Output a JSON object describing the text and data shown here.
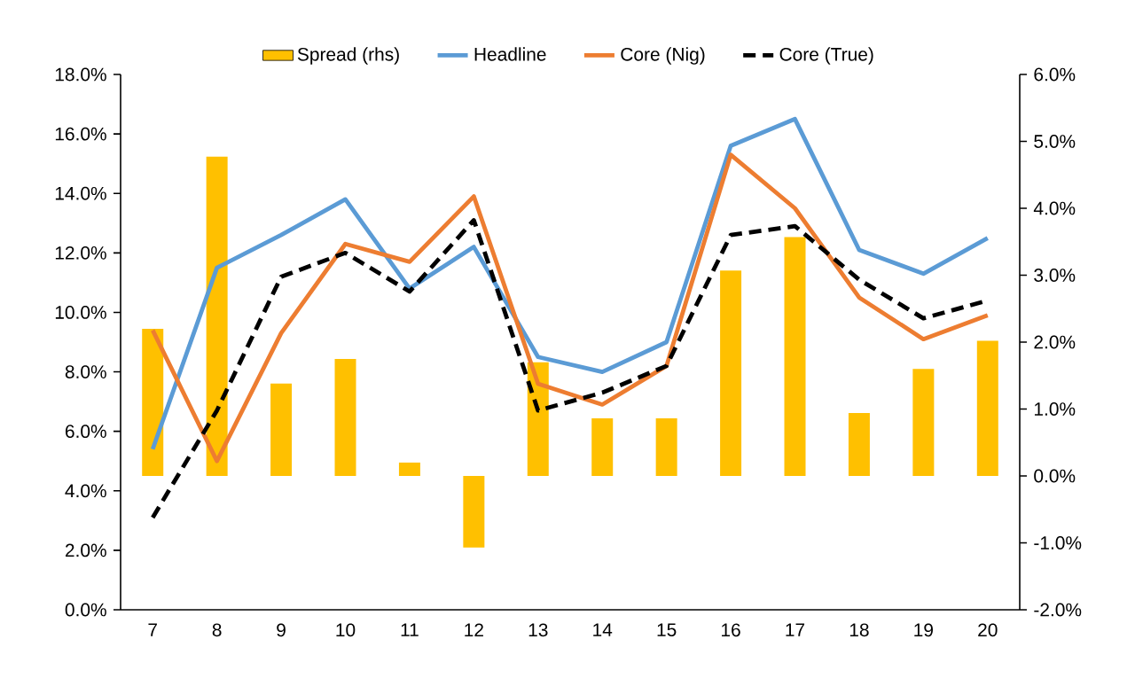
{
  "chart_data": {
    "type": "line",
    "categories": [
      "7",
      "8",
      "9",
      "10",
      "11",
      "12",
      "13",
      "14",
      "15",
      "16",
      "17",
      "18",
      "19",
      "20"
    ],
    "series": [
      {
        "name": "Spread (rhs)",
        "type": "bar",
        "axis": "y2",
        "color": "#ffc000",
        "values": [
          2.2,
          4.77,
          1.38,
          1.75,
          0.2,
          -1.07,
          1.7,
          0.86,
          0.86,
          3.07,
          3.57,
          0.94,
          1.6,
          2.02
        ]
      },
      {
        "name": "Headline",
        "color": "#5b9bd5",
        "line_style": "solid",
        "values": [
          5.4,
          11.5,
          12.6,
          13.8,
          10.8,
          12.2,
          8.5,
          8.0,
          9.0,
          15.6,
          16.5,
          12.1,
          11.3,
          12.5
        ]
      },
      {
        "name": "Core (Nig)",
        "color": "#ed7d31",
        "line_style": "solid",
        "values": [
          9.4,
          5.0,
          9.3,
          12.3,
          11.7,
          13.9,
          7.6,
          6.9,
          8.2,
          15.3,
          13.5,
          10.5,
          9.1,
          9.9
        ]
      },
      {
        "name": "Core (True)",
        "color": "#000000",
        "line_style": "dashed",
        "values": [
          3.1,
          6.7,
          11.2,
          12.0,
          10.7,
          13.1,
          6.7,
          7.3,
          8.2,
          12.6,
          12.9,
          11.1,
          9.8,
          10.4
        ]
      }
    ],
    "ylim": [
      0,
      18
    ],
    "yticks": [
      {
        "value": 0,
        "label": "0.0%"
      },
      {
        "value": 2,
        "label": "2.0%"
      },
      {
        "value": 4,
        "label": "4.0%"
      },
      {
        "value": 6,
        "label": "6.0%"
      },
      {
        "value": 8,
        "label": "8.0%"
      },
      {
        "value": 10,
        "label": "10.0%"
      },
      {
        "value": 12,
        "label": "12.0%"
      },
      {
        "value": 14,
        "label": "14.0%"
      },
      {
        "value": 16,
        "label": "16.0%"
      },
      {
        "value": 18,
        "label": "18.0%"
      }
    ],
    "y2lim": [
      -2,
      6
    ],
    "y2ticks": [
      {
        "value": -2,
        "label": "-2.0%"
      },
      {
        "value": -1,
        "label": "-1.0%"
      },
      {
        "value": 0,
        "label": "0.0%"
      },
      {
        "value": 1,
        "label": "1.0%"
      },
      {
        "value": 2,
        "label": "2.0%"
      },
      {
        "value": 3,
        "label": "3.0%"
      },
      {
        "value": 4,
        "label": "4.0%"
      },
      {
        "value": 5,
        "label": "5.0%"
      },
      {
        "value": 6,
        "label": "6.0%"
      }
    ],
    "grid": false,
    "legend": "top",
    "marker": "none"
  }
}
